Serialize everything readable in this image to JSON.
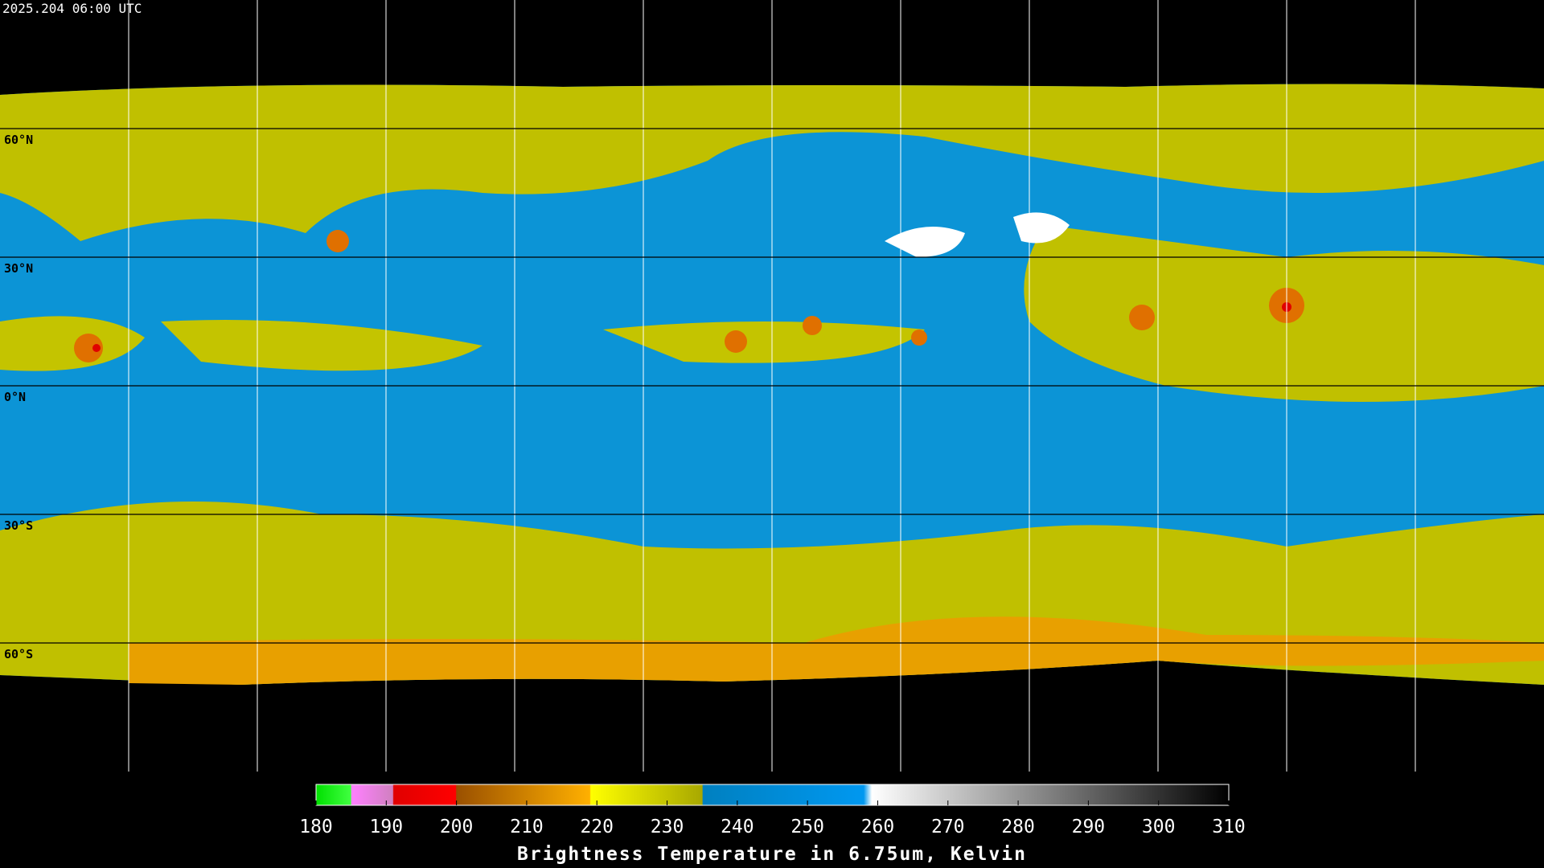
{
  "header": {
    "timestamp": "2025.204 06:00 UTC"
  },
  "map": {
    "latitude_labels": [
      "60°N",
      "30°N",
      "0°N",
      "30°S",
      "60°S"
    ]
  },
  "colorbar": {
    "range": [
      180,
      310
    ],
    "ticks": [
      180,
      190,
      200,
      210,
      220,
      230,
      240,
      250,
      260,
      270,
      280,
      290,
      300,
      310
    ],
    "title": "Brightness Temperature in 6.75um, Kelvin"
  }
}
